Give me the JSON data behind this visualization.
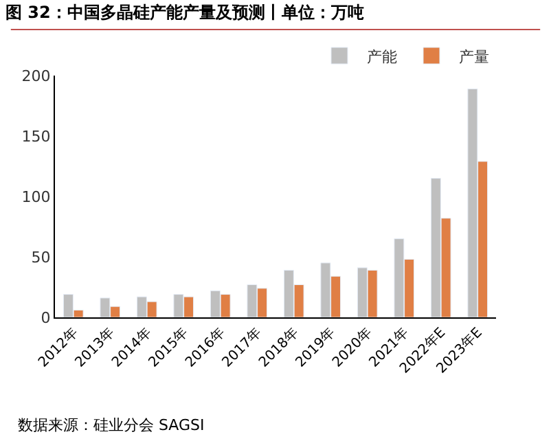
{
  "chart_data": {
    "type": "bar",
    "title": "图 32：中国多晶硅产能产量及预测丨单位：万吨",
    "categories": [
      "2012年",
      "2013年",
      "2014年",
      "2015年",
      "2016年",
      "2017年",
      "2018年",
      "2019年",
      "2020年",
      "2021年",
      "2022年E",
      "2023年E"
    ],
    "series": [
      {
        "name": "产能",
        "color": "#bfbfbf",
        "values": [
          19,
          16,
          17,
          19,
          22,
          27,
          39,
          45,
          41,
          65,
          115,
          189
        ]
      },
      {
        "name": "产量",
        "color": "#e07f45",
        "values": [
          6,
          9,
          13,
          17,
          19,
          24,
          27,
          34,
          39,
          48,
          82,
          129
        ]
      }
    ],
    "ylim": [
      0,
      200
    ],
    "yticks": [
      0,
      50,
      100,
      150,
      200
    ],
    "legend": "top right",
    "annotations": [
      "数据来源：硅业分会 SAGSI"
    ]
  }
}
